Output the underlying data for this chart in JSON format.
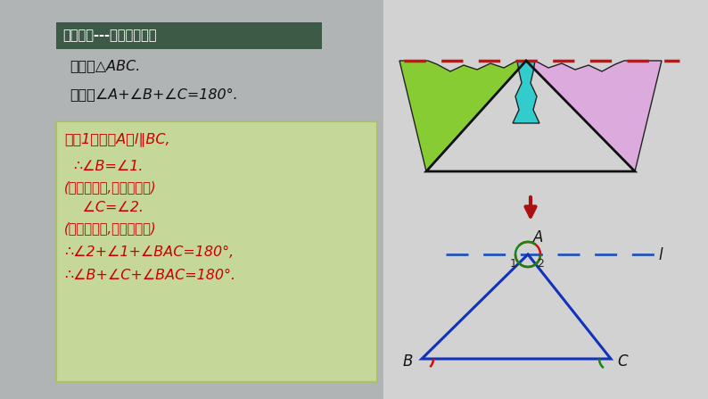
{
  "bg_color": "#c8c8c8",
  "left_bg_color": "#b8baba",
  "right_bg_color": "#d5d5d5",
  "title_box_color": "#3d5a47",
  "title_text": "合作探究---三角形内角和",
  "title_text_color": "#ffffff",
  "given_text1": "已知：",
  "given_text2": "△ABC.",
  "prove_text1": "求证：",
  "prove_text2": "∠A+∠B+∠C=180°.",
  "proof_box_color": "#c5d89a",
  "proof_box_edge": "#a8c070",
  "proof_text_color": "#cc0000",
  "proof_lines": [
    "证法1：过点A作l∥BC,",
    "∴∠B=∠1.",
    "(两直线平行,内错角相等)",
    "    ∠C=∠2.",
    "(两直线平行,内错角相等)",
    "∴∠2+∠1+∠BAC=180°,",
    "∴∠B+∠C+∠BAC=180°."
  ],
  "dashed_red_color": "#cc1111",
  "dashed_blue_color": "#2255bb",
  "triangle_blue": "#1133bb",
  "angle_red": "#cc1111",
  "angle_green": "#118811",
  "torn_left_color": "#88cc33",
  "torn_center_color": "#33cccc",
  "torn_right_color": "#ddaadd",
  "arrow_color": "#aa1111",
  "label_color": "#111111"
}
